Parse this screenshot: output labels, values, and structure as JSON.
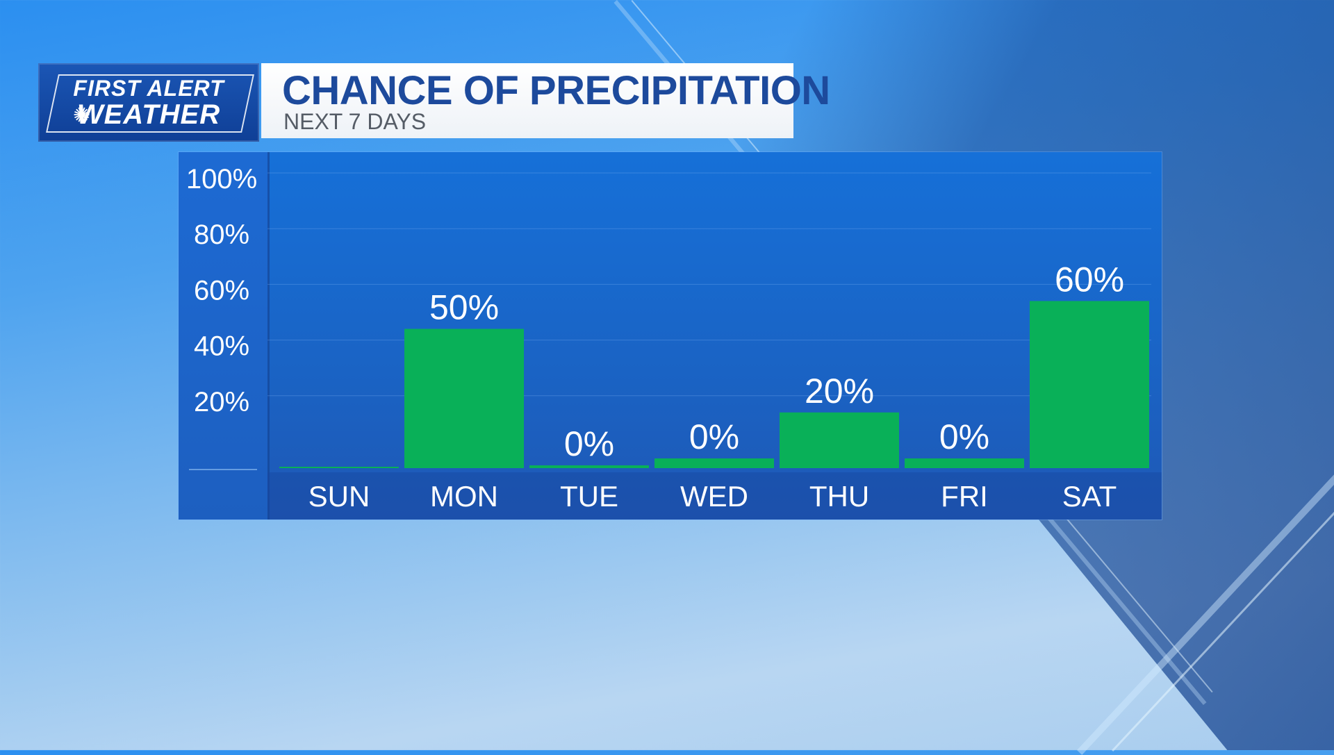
{
  "logo": {
    "line1": "FIRST ALERT",
    "line2": "WEATHER",
    "icon": "nbc-peacock-icon"
  },
  "header": {
    "title": "CHANCE OF PRECIPITATION",
    "subtitle": "NEXT 7 DAYS"
  },
  "colors": {
    "bar": "#09b058",
    "panel": "#1a66c9",
    "title_text": "#1d4a9c"
  },
  "chart_data": {
    "type": "bar",
    "categories": [
      "SUN",
      "MON",
      "TUE",
      "WED",
      "THU",
      "FRI",
      "SAT"
    ],
    "values": [
      0,
      50,
      0,
      0,
      20,
      0,
      60
    ],
    "value_labels": [
      "",
      "50%",
      "0%",
      "0%",
      "20%",
      "0%",
      "60%"
    ],
    "ytick_labels": [
      "100%",
      "80%",
      "60%",
      "40%",
      "20%"
    ],
    "yticks": [
      100,
      80,
      60,
      40,
      20
    ],
    "ylim": [
      0,
      100
    ],
    "grid": true,
    "legend": "none"
  }
}
